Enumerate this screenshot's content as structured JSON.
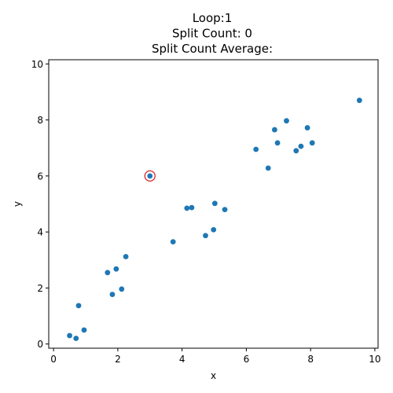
{
  "chart_data": {
    "type": "scatter",
    "title": [
      "Loop:1",
      "Split Count: 0",
      "Split Count Average:"
    ],
    "xlabel": "x",
    "ylabel": "y",
    "xlim": [
      -0.15,
      10.1
    ],
    "ylim": [
      -0.15,
      10.15
    ],
    "xticks": [
      0,
      2,
      4,
      6,
      8,
      10
    ],
    "yticks": [
      0,
      2,
      4,
      6,
      8,
      10
    ],
    "grid": false,
    "point_color": "#1f77b4",
    "highlight_color": "#d62728",
    "points": [
      {
        "x": 0.5,
        "y": 0.3
      },
      {
        "x": 0.7,
        "y": 0.2
      },
      {
        "x": 0.95,
        "y": 0.5
      },
      {
        "x": 0.78,
        "y": 1.37
      },
      {
        "x": 1.68,
        "y": 2.55
      },
      {
        "x": 1.95,
        "y": 2.68
      },
      {
        "x": 2.25,
        "y": 3.12
      },
      {
        "x": 1.83,
        "y": 1.77
      },
      {
        "x": 2.12,
        "y": 1.96
      },
      {
        "x": 3.0,
        "y": 6.0
      },
      {
        "x": 3.72,
        "y": 3.65
      },
      {
        "x": 4.15,
        "y": 4.85
      },
      {
        "x": 4.3,
        "y": 4.87
      },
      {
        "x": 4.73,
        "y": 3.87
      },
      {
        "x": 4.98,
        "y": 4.08
      },
      {
        "x": 5.02,
        "y": 5.02
      },
      {
        "x": 5.33,
        "y": 4.8
      },
      {
        "x": 6.3,
        "y": 6.95
      },
      {
        "x": 6.68,
        "y": 6.28
      },
      {
        "x": 6.88,
        "y": 7.65
      },
      {
        "x": 6.97,
        "y": 7.18
      },
      {
        "x": 7.25,
        "y": 7.97
      },
      {
        "x": 7.55,
        "y": 6.9
      },
      {
        "x": 7.7,
        "y": 7.06
      },
      {
        "x": 7.9,
        "y": 7.72
      },
      {
        "x": 8.05,
        "y": 7.18
      },
      {
        "x": 9.52,
        "y": 8.7
      }
    ],
    "highlighted_point": {
      "x": 3.0,
      "y": 6.0
    }
  }
}
